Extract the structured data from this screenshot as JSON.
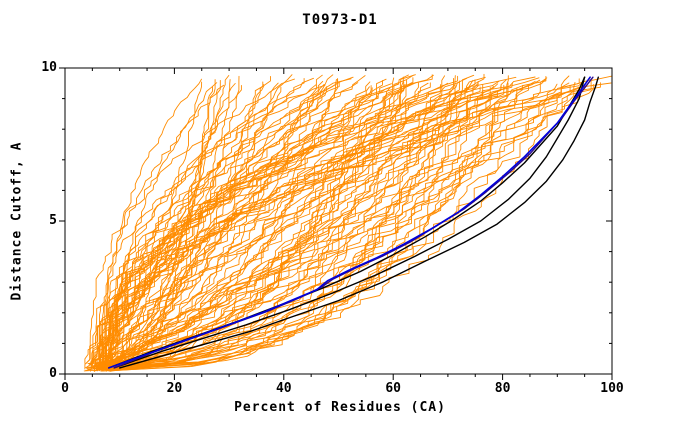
{
  "figure": {
    "title": "T0973-D1",
    "background": "#ffffff"
  },
  "chart_data": {
    "type": "line",
    "title": "T0973-D1",
    "xlabel": "Percent of Residues (CA)",
    "ylabel": "Distance Cutoff, A",
    "xlim": [
      0,
      100
    ],
    "ylim": [
      0,
      10
    ],
    "x_major_ticks": [
      0,
      20,
      40,
      60,
      80,
      100
    ],
    "x_minor_step": 5,
    "y_major_ticks": [
      0,
      5,
      10
    ],
    "y_minor_step": 1,
    "grid": false,
    "legend": "none",
    "description": "CASP GDT-style plot for target T0973-D1: cumulative curves of distance cutoff (A) versus percent of CA residues fitting under that cutoff. A large ensemble of model curves is drawn in orange; three highlighted models are drawn in black and two in blue/navy.",
    "ensemble": {
      "name": "model ensemble (orange curves)",
      "color": "#ff8c00",
      "count": 115,
      "seed": 20973,
      "x_start_range": [
        3.5,
        8.5
      ],
      "y_start_range": [
        0.08,
        0.35
      ],
      "x_top_range": [
        24,
        100
      ],
      "x_top_bias": 0.85,
      "y_top_range": [
        9.35,
        9.8
      ],
      "shape_exponent_range": [
        0.3,
        2.6
      ],
      "jitter": 0.05,
      "line_width": 0.9
    },
    "highlight_series": [
      {
        "name": "highlighted model 1 (black)",
        "color": "#000000",
        "line_width": 1.4,
        "points": [
          [
            10,
            0.2
          ],
          [
            18,
            0.6
          ],
          [
            26,
            1.0
          ],
          [
            34,
            1.4
          ],
          [
            42,
            1.9
          ],
          [
            50,
            2.4
          ],
          [
            58,
            3.0
          ],
          [
            66,
            3.7
          ],
          [
            73,
            4.3
          ],
          [
            79,
            4.9
          ],
          [
            84,
            5.6
          ],
          [
            88,
            6.3
          ],
          [
            91,
            7.0
          ],
          [
            93,
            7.6
          ],
          [
            95,
            8.3
          ],
          [
            96,
            8.9
          ],
          [
            97,
            9.4
          ],
          [
            97.5,
            9.7
          ]
        ]
      },
      {
        "name": "highlighted model 2 (black)",
        "color": "#000000",
        "line_width": 1.4,
        "points": [
          [
            9,
            0.2
          ],
          [
            17,
            0.7
          ],
          [
            25,
            1.15
          ],
          [
            33,
            1.6
          ],
          [
            41,
            2.1
          ],
          [
            49,
            2.65
          ],
          [
            57,
            3.25
          ],
          [
            64,
            3.85
          ],
          [
            70,
            4.4
          ],
          [
            76,
            5.0
          ],
          [
            81,
            5.7
          ],
          [
            85,
            6.4
          ],
          [
            88,
            7.1
          ],
          [
            90,
            7.7
          ],
          [
            92,
            8.3
          ],
          [
            94,
            9.0
          ],
          [
            95,
            9.7
          ]
        ]
      },
      {
        "name": "highlighted model 3 (black)",
        "color": "#000000",
        "line_width": 1.4,
        "points": [
          [
            8,
            0.2
          ],
          [
            16,
            0.75
          ],
          [
            24,
            1.25
          ],
          [
            32,
            1.75
          ],
          [
            40,
            2.3
          ],
          [
            47,
            2.8
          ],
          [
            54,
            3.35
          ],
          [
            60,
            3.9
          ],
          [
            66,
            4.5
          ],
          [
            71,
            5.05
          ],
          [
            76,
            5.65
          ],
          [
            80,
            6.25
          ],
          [
            84,
            6.9
          ],
          [
            87,
            7.5
          ],
          [
            90,
            8.1
          ],
          [
            92,
            8.7
          ],
          [
            94,
            9.3
          ],
          [
            95,
            9.7
          ]
        ]
      },
      {
        "name": "highlighted model 4 (navy)",
        "color": "#2a0a8c",
        "line_width": 1.4,
        "points": [
          [
            9,
            0.2
          ],
          [
            16,
            0.7
          ],
          [
            23,
            1.15
          ],
          [
            30,
            1.6
          ],
          [
            37,
            2.05
          ],
          [
            43,
            2.5
          ],
          [
            47,
            2.85
          ],
          [
            49,
            3.1
          ],
          [
            53,
            3.45
          ],
          [
            58,
            3.85
          ],
          [
            63,
            4.3
          ],
          [
            68,
            4.85
          ],
          [
            73,
            5.4
          ],
          [
            77,
            5.95
          ],
          [
            81,
            6.55
          ],
          [
            85,
            7.2
          ],
          [
            88,
            7.8
          ],
          [
            91,
            8.4
          ],
          [
            93,
            8.9
          ],
          [
            95,
            9.35
          ],
          [
            96.5,
            9.7
          ]
        ]
      },
      {
        "name": "highlighted model 5 (blue)",
        "color": "#0000dd",
        "line_width": 1.6,
        "points": [
          [
            8,
            0.2
          ],
          [
            15,
            0.65
          ],
          [
            22,
            1.1
          ],
          [
            29,
            1.55
          ],
          [
            36,
            2.0
          ],
          [
            42,
            2.45
          ],
          [
            46,
            2.75
          ],
          [
            48,
            3.05
          ],
          [
            52,
            3.4
          ],
          [
            57,
            3.8
          ],
          [
            62,
            4.25
          ],
          [
            67,
            4.75
          ],
          [
            72,
            5.3
          ],
          [
            76,
            5.85
          ],
          [
            80,
            6.45
          ],
          [
            84,
            7.1
          ],
          [
            87,
            7.65
          ],
          [
            90,
            8.2
          ],
          [
            92,
            8.7
          ],
          [
            94,
            9.2
          ],
          [
            96,
            9.7
          ]
        ]
      }
    ]
  },
  "colors": {
    "ensemble": "#ff8c00",
    "axis": "#000000",
    "text": "#000000",
    "background": "#ffffff"
  }
}
